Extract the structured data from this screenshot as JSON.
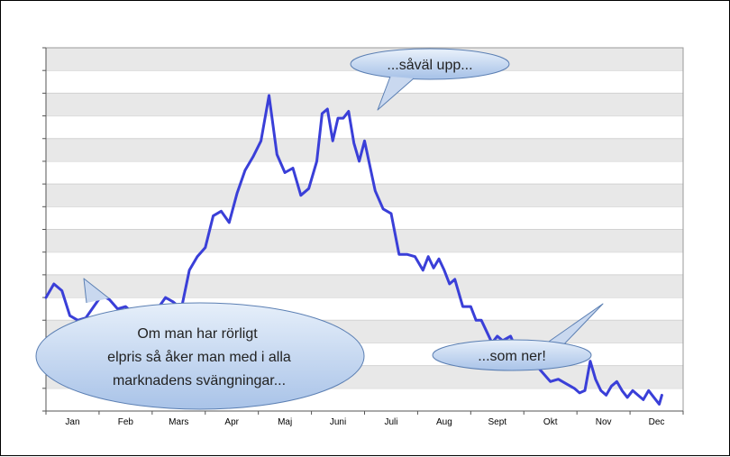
{
  "chart_data": {
    "type": "line",
    "title": "",
    "xlabel": "",
    "ylabel": "",
    "categories": [
      "Jan",
      "Feb",
      "Mars",
      "Apr",
      "Maj",
      "Juni",
      "Juli",
      "Aug",
      "Sept",
      "Okt",
      "Nov",
      "Dec"
    ],
    "ylim": [
      0,
      16
    ],
    "grid": true,
    "y_tick_count": 17,
    "series": [
      {
        "color": "#3a3fd8",
        "x": [
          0.0,
          0.15,
          0.3,
          0.45,
          0.6,
          0.75,
          0.9,
          1.05,
          1.2,
          1.35,
          1.5,
          1.65,
          1.8,
          1.95,
          2.1,
          2.25,
          2.4,
          2.55,
          2.7,
          2.85,
          3.0,
          3.15,
          3.3,
          3.45,
          3.6,
          3.75,
          3.9,
          4.05,
          4.2,
          4.35,
          4.5,
          4.65,
          4.8,
          4.95,
          5.1,
          5.2,
          5.3,
          5.4,
          5.5,
          5.6,
          5.7,
          5.8,
          5.9,
          6.0,
          6.1,
          6.2,
          6.35,
          6.5,
          6.65,
          6.8,
          6.95,
          7.1,
          7.2,
          7.3,
          7.4,
          7.5,
          7.6,
          7.7,
          7.85,
          8.0,
          8.1,
          8.2,
          8.3,
          8.4,
          8.5,
          8.6,
          8.75,
          8.9,
          9.05,
          9.2,
          9.35,
          9.5,
          9.65,
          9.8,
          9.95,
          10.05,
          10.15,
          10.25,
          10.35,
          10.45,
          10.55,
          10.65,
          10.75,
          10.85,
          10.95,
          11.05,
          11.15,
          11.25,
          11.35,
          11.45,
          11.55,
          11.6
        ],
        "y": [
          5.0,
          5.6,
          5.3,
          4.2,
          4.0,
          4.1,
          4.6,
          5.1,
          4.9,
          4.5,
          4.6,
          4.3,
          3.8,
          4.1,
          4.5,
          5.0,
          4.8,
          4.5,
          6.2,
          6.8,
          7.2,
          8.6,
          8.8,
          8.3,
          9.6,
          10.6,
          11.2,
          11.9,
          13.9,
          11.3,
          10.5,
          10.7,
          9.5,
          9.8,
          11.0,
          13.1,
          13.3,
          11.9,
          12.9,
          12.9,
          13.2,
          11.8,
          11.0,
          11.9,
          10.8,
          9.7,
          8.9,
          8.7,
          6.9,
          6.9,
          6.8,
          6.2,
          6.8,
          6.3,
          6.7,
          6.2,
          5.6,
          5.8,
          4.6,
          4.6,
          4.0,
          4.0,
          3.5,
          3.0,
          3.3,
          3.1,
          3.3,
          2.5,
          2.9,
          2.1,
          1.7,
          1.3,
          1.4,
          1.2,
          1.0,
          0.8,
          0.9,
          2.2,
          1.4,
          0.9,
          0.7,
          1.1,
          1.3,
          0.9,
          0.6,
          0.9,
          0.7,
          0.5,
          0.9,
          0.6,
          0.3,
          0.7
        ]
      }
    ]
  },
  "callouts": {
    "up": "...såväl upp...",
    "down": "...som ner!",
    "main": [
      "Om man har rörligt",
      "elpris så åker man med i alla",
      "marknadens svängningar..."
    ]
  }
}
